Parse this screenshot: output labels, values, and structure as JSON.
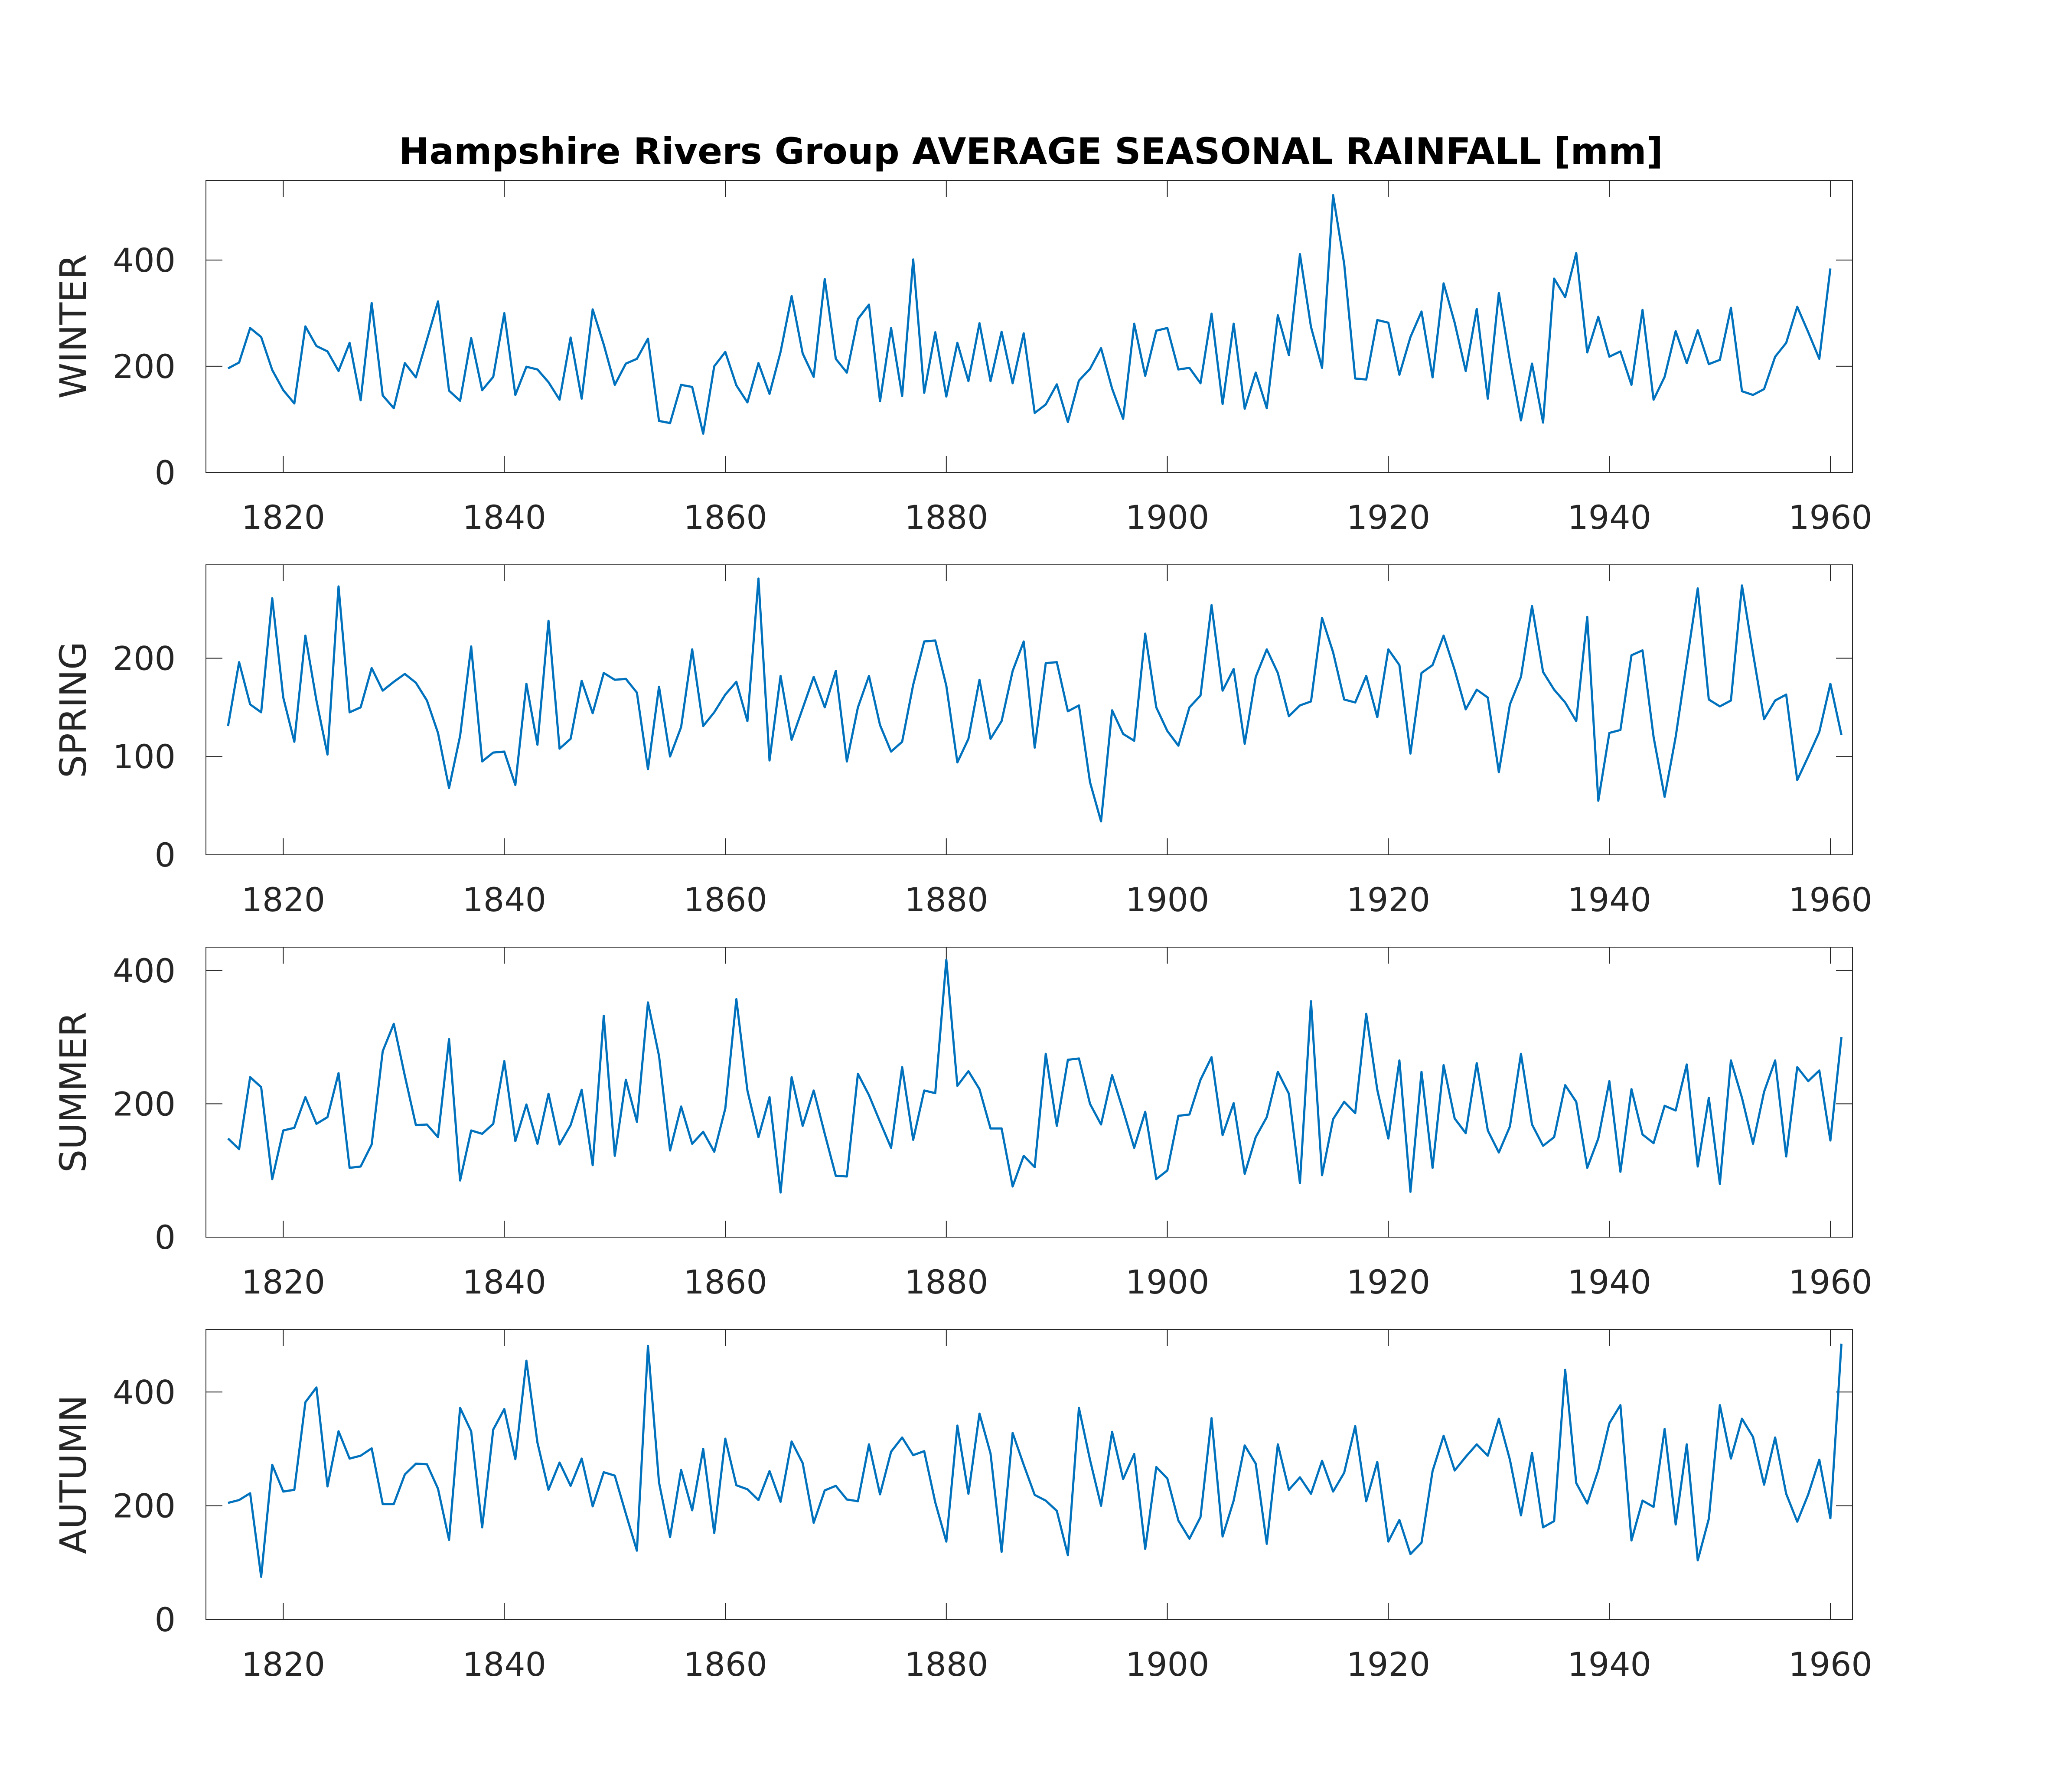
{
  "figure_title": "Hampshire Rivers Group AVERAGE SEASONAL RAINFALL [mm]",
  "line_color": "#0072bd",
  "chart_data": [
    {
      "type": "line",
      "ylabel": "WINTER",
      "xlim": [
        1813,
        1962
      ],
      "ylim": [
        0,
        550
      ],
      "xticks": [
        1820,
        1840,
        1860,
        1880,
        1900,
        1920,
        1940,
        1960
      ],
      "yticks": [
        0,
        200,
        400
      ],
      "grid": false,
      "x_start": 1815,
      "series": [
        {
          "values": [
            196,
            207,
            272,
            255,
            193,
            155,
            130,
            275,
            238,
            228,
            191,
            244,
            136,
            319,
            145,
            121,
            206,
            179,
            250,
            322,
            154,
            135,
            253,
            155,
            180,
            300,
            146,
            199,
            194,
            170,
            137,
            254,
            139,
            307,
            241,
            165,
            205,
            214,
            252,
            97,
            93,
            165,
            161,
            73,
            200,
            227,
            164,
            132,
            206,
            148,
            227,
            332,
            224,
            180,
            364,
            214,
            188,
            289,
            316,
            134,
            272,
            144,
            401,
            150,
            264,
            143,
            244,
            172,
            281,
            172,
            265,
            168,
            262,
            112,
            128,
            166,
            95,
            173,
            195,
            234,
            158,
            101,
            280,
            182,
            267,
            272,
            194,
            197,
            168,
            299,
            129,
            280,
            120,
            188,
            121,
            296,
            221,
            411,
            274,
            197,
            522,
            393,
            177,
            175,
            287,
            282,
            184,
            255,
            303,
            179,
            356,
            282,
            191,
            308,
            139,
            338,
            211,
            98,
            205,
            94,
            365,
            330,
            413,
            226,
            293,
            218,
            228,
            165,
            306,
            137,
            180,
            266,
            206,
            268,
            204,
            212,
            310,
            153,
            146,
            157,
            218,
            244,
            312,
            264,
            214,
            384
          ]
        }
      ]
    },
    {
      "type": "line",
      "ylabel": "SPRING",
      "xlim": [
        1813,
        1962
      ],
      "ylim": [
        0,
        295
      ],
      "xticks": [
        1820,
        1840,
        1860,
        1880,
        1900,
        1920,
        1940,
        1960
      ],
      "yticks": [
        0,
        100,
        200
      ],
      "grid": false,
      "x_start": 1815,
      "series": [
        {
          "values": [
            131,
            196,
            153,
            145,
            261,
            160,
            115,
            223,
            157,
            102,
            273,
            145,
            150,
            190,
            167,
            176,
            184,
            175,
            157,
            124,
            68,
            121,
            212,
            95,
            104,
            105,
            71,
            174,
            112,
            238,
            108,
            118,
            177,
            144,
            185,
            178,
            179,
            165,
            87,
            171,
            100,
            130,
            209,
            131,
            145,
            163,
            176,
            136,
            281,
            96,
            182,
            117,
            149,
            181,
            150,
            187,
            95,
            150,
            182,
            132,
            105,
            115,
            173,
            217,
            218,
            172,
            94,
            118,
            178,
            118,
            136,
            187,
            217,
            109,
            195,
            196,
            146,
            152,
            74,
            34,
            147,
            123,
            116,
            225,
            150,
            126,
            111,
            150,
            162,
            254,
            167,
            189,
            113,
            181,
            209,
            185,
            141,
            152,
            156,
            241,
            206,
            158,
            155,
            182,
            140,
            209,
            193,
            103,
            185,
            193,
            223,
            188,
            148,
            168,
            160,
            84,
            153,
            181,
            253,
            186,
            168,
            155,
            136,
            242,
            55,
            124,
            127,
            203,
            208,
            120,
            59,
            120,
            196,
            271,
            158,
            151,
            157,
            274,
            205,
            138,
            157,
            163,
            76,
            100,
            125,
            174,
            122
          ]
        }
      ]
    },
    {
      "type": "line",
      "ylabel": "SUMMER",
      "xlim": [
        1813,
        1962
      ],
      "ylim": [
        0,
        435
      ],
      "xticks": [
        1820,
        1840,
        1860,
        1880,
        1900,
        1920,
        1940,
        1960
      ],
      "yticks": [
        0,
        200,
        400
      ],
      "grid": false,
      "x_start": 1815,
      "series": [
        {
          "values": [
            148,
            132,
            240,
            225,
            87,
            160,
            164,
            210,
            170,
            180,
            246,
            104,
            106,
            139,
            279,
            320,
            242,
            168,
            169,
            150,
            297,
            85,
            160,
            155,
            170,
            264,
            144,
            199,
            140,
            215,
            139,
            168,
            221,
            108,
            332,
            122,
            236,
            173,
            352,
            272,
            130,
            196,
            140,
            158,
            128,
            193,
            357,
            220,
            150,
            210,
            67,
            240,
            167,
            220,
            155,
            92,
            91,
            245,
            213,
            173,
            134,
            255,
            146,
            220,
            216,
            416,
            227,
            249,
            222,
            163,
            163,
            76,
            122,
            105,
            275,
            167,
            266,
            268,
            200,
            169,
            243,
            190,
            134,
            188,
            87,
            100,
            182,
            184,
            236,
            270,
            153,
            201,
            95,
            150,
            180,
            248,
            215,
            81,
            354,
            93,
            177,
            203,
            186,
            335,
            221,
            148,
            265,
            68,
            248,
            104,
            258,
            178,
            156,
            261,
            160,
            127,
            166,
            275,
            169,
            137,
            150,
            228,
            203,
            104,
            148,
            234,
            98,
            222,
            154,
            141,
            197,
            190,
            259,
            106,
            209,
            80,
            265,
            209,
            140,
            218,
            265,
            121,
            255,
            234,
            250,
            145,
            300
          ]
        }
      ]
    },
    {
      "type": "line",
      "ylabel": "AUTUMN",
      "xlim": [
        1813,
        1962
      ],
      "ylim": [
        0,
        510
      ],
      "xticks": [
        1820,
        1840,
        1860,
        1880,
        1900,
        1920,
        1940,
        1960
      ],
      "yticks": [
        0,
        200,
        400
      ],
      "grid": false,
      "x_start": 1815,
      "series": [
        {
          "values": [
            205,
            210,
            222,
            75,
            272,
            225,
            228,
            382,
            408,
            234,
            331,
            283,
            288,
            301,
            203,
            203,
            255,
            274,
            273,
            230,
            140,
            372,
            331,
            162,
            334,
            370,
            282,
            455,
            311,
            228,
            276,
            235,
            283,
            199,
            259,
            253,
            186,
            121,
            481,
            241,
            145,
            263,
            192,
            300,
            152,
            318,
            236,
            229,
            210,
            261,
            207,
            313,
            275,
            170,
            227,
            235,
            211,
            208,
            308,
            220,
            295,
            320,
            289,
            296,
            206,
            137,
            341,
            221,
            362,
            292,
            119,
            328,
            272,
            219,
            209,
            191,
            113,
            372,
            281,
            200,
            330,
            247,
            291,
            124,
            268,
            248,
            174,
            142,
            180,
            354,
            146,
            209,
            306,
            274,
            133,
            308,
            228,
            250,
            221,
            279,
            225,
            258,
            340,
            208,
            277,
            137,
            175,
            115,
            135,
            261,
            323,
            262,
            286,
            308,
            288,
            353,
            281,
            183,
            293,
            162,
            173,
            439,
            240,
            204,
            263,
            345,
            377,
            139,
            209,
            198,
            335,
            167,
            308,
            104,
            177,
            377,
            283,
            353,
            321,
            237,
            320,
            221,
            172,
            220,
            281,
            178,
            485
          ]
        }
      ]
    }
  ]
}
